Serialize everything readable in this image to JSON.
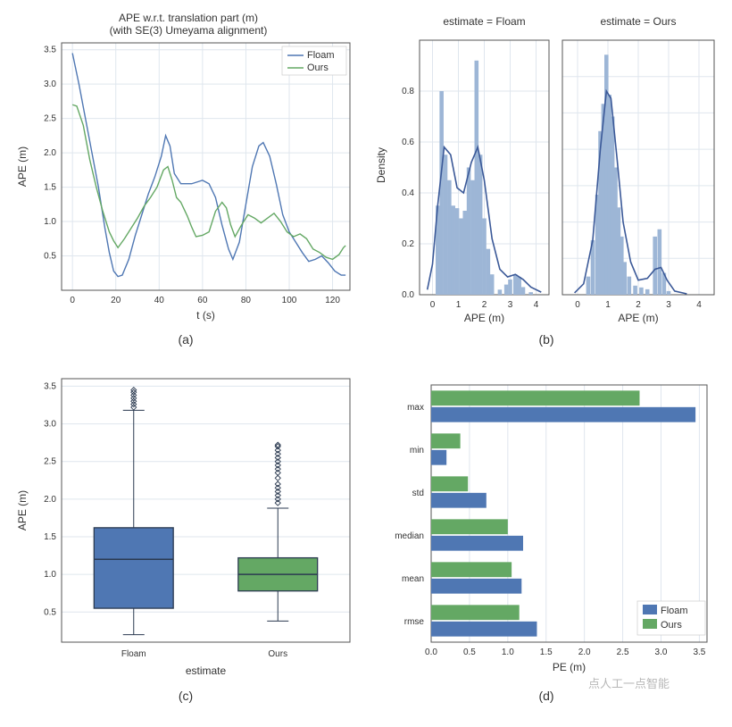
{
  "colors": {
    "floam": "#4f77b3",
    "ours": "#64a864",
    "grid": "#dfe6ee",
    "axis": "#555555",
    "text": "#333333",
    "bg": "#ffffff",
    "boxFloam": "#4f77b3",
    "boxOurs": "#64a864",
    "boxEdge": "#2b3a50",
    "histBar": "#9db6d6",
    "histLine": "#3b5998"
  },
  "font": {
    "axis_label_size": 12,
    "tick_size": 10,
    "title_size": 12,
    "legend_size": 11,
    "subcap_size": 14
  },
  "panel_a": {
    "caption": "(a)",
    "type": "line",
    "title_line1": "APE w.r.t. translation part (m)",
    "title_line2": "(with SE(3) Umeyama alignment)",
    "xlabel": "t (s)",
    "ylabel": "APE (m)",
    "xlim": [
      -5,
      128
    ],
    "ylim": [
      0,
      3.6
    ],
    "xticks": [
      0,
      20,
      40,
      60,
      80,
      100,
      120
    ],
    "yticks": [
      0.5,
      1.0,
      1.5,
      2.0,
      2.5,
      3.0,
      3.5
    ],
    "legend": [
      {
        "label": "Floam",
        "color": "floam"
      },
      {
        "label": "Ours",
        "color": "ours"
      }
    ],
    "series": {
      "floam": [
        [
          0,
          3.45
        ],
        [
          3,
          3.0
        ],
        [
          6,
          2.5
        ],
        [
          9,
          2.0
        ],
        [
          12,
          1.5
        ],
        [
          15,
          0.9
        ],
        [
          17,
          0.55
        ],
        [
          19,
          0.28
        ],
        [
          21,
          0.2
        ],
        [
          23,
          0.22
        ],
        [
          26,
          0.45
        ],
        [
          29,
          0.8
        ],
        [
          32,
          1.1
        ],
        [
          35,
          1.4
        ],
        [
          38,
          1.65
        ],
        [
          41,
          1.95
        ],
        [
          43,
          2.25
        ],
        [
          45,
          2.1
        ],
        [
          47,
          1.7
        ],
        [
          50,
          1.55
        ],
        [
          55,
          1.55
        ],
        [
          60,
          1.6
        ],
        [
          63,
          1.55
        ],
        [
          66,
          1.35
        ],
        [
          69,
          0.95
        ],
        [
          72,
          0.6
        ],
        [
          74,
          0.45
        ],
        [
          77,
          0.7
        ],
        [
          80,
          1.25
        ],
        [
          83,
          1.8
        ],
        [
          86,
          2.1
        ],
        [
          88,
          2.15
        ],
        [
          91,
          1.95
        ],
        [
          94,
          1.55
        ],
        [
          97,
          1.1
        ],
        [
          100,
          0.85
        ],
        [
          103,
          0.7
        ],
        [
          106,
          0.55
        ],
        [
          109,
          0.42
        ],
        [
          112,
          0.45
        ],
        [
          115,
          0.5
        ],
        [
          118,
          0.4
        ],
        [
          121,
          0.28
        ],
        [
          124,
          0.22
        ],
        [
          126,
          0.22
        ]
      ],
      "ours": [
        [
          0,
          2.7
        ],
        [
          2,
          2.68
        ],
        [
          5,
          2.4
        ],
        [
          8,
          1.9
        ],
        [
          11,
          1.5
        ],
        [
          14,
          1.15
        ],
        [
          17,
          0.85
        ],
        [
          19,
          0.72
        ],
        [
          21,
          0.62
        ],
        [
          24,
          0.75
        ],
        [
          27,
          0.9
        ],
        [
          30,
          1.05
        ],
        [
          33,
          1.22
        ],
        [
          36,
          1.35
        ],
        [
          39,
          1.5
        ],
        [
          42,
          1.75
        ],
        [
          44,
          1.8
        ],
        [
          46,
          1.6
        ],
        [
          48,
          1.35
        ],
        [
          50,
          1.28
        ],
        [
          53,
          1.08
        ],
        [
          55,
          0.92
        ],
        [
          57,
          0.78
        ],
        [
          60,
          0.8
        ],
        [
          63,
          0.85
        ],
        [
          66,
          1.15
        ],
        [
          69,
          1.28
        ],
        [
          71,
          1.2
        ],
        [
          73,
          0.95
        ],
        [
          75,
          0.78
        ],
        [
          78,
          0.95
        ],
        [
          81,
          1.1
        ],
        [
          84,
          1.05
        ],
        [
          87,
          0.98
        ],
        [
          90,
          1.05
        ],
        [
          93,
          1.12
        ],
        [
          96,
          1.0
        ],
        [
          99,
          0.85
        ],
        [
          102,
          0.78
        ],
        [
          105,
          0.82
        ],
        [
          108,
          0.75
        ],
        [
          111,
          0.6
        ],
        [
          114,
          0.55
        ],
        [
          117,
          0.48
        ],
        [
          120,
          0.45
        ],
        [
          123,
          0.52
        ],
        [
          125,
          0.62
        ],
        [
          126,
          0.65
        ]
      ]
    }
  },
  "panel_b": {
    "caption": "(b)",
    "xlabel": "APE (m)",
    "ylabel": "Density",
    "sub": [
      {
        "title": "estimate = Floam",
        "xlim": [
          -0.5,
          4.5
        ],
        "ylim": [
          0,
          1.0
        ],
        "xticks": [
          0,
          1,
          2,
          3,
          4
        ],
        "yticks": [
          0.0,
          0.2,
          0.4,
          0.6,
          0.8
        ],
        "bin_width": 0.175,
        "bars": [
          [
            0.2,
            0.35
          ],
          [
            0.35,
            0.8
          ],
          [
            0.5,
            0.55
          ],
          [
            0.65,
            0.45
          ],
          [
            0.8,
            0.35
          ],
          [
            0.95,
            0.34
          ],
          [
            1.1,
            0.3
          ],
          [
            1.25,
            0.33
          ],
          [
            1.4,
            0.5
          ],
          [
            1.55,
            0.45
          ],
          [
            1.7,
            0.92
          ],
          [
            1.85,
            0.55
          ],
          [
            2.0,
            0.3
          ],
          [
            2.15,
            0.18
          ],
          [
            2.3,
            0.08
          ],
          [
            2.6,
            0.02
          ],
          [
            2.85,
            0.04
          ],
          [
            3.0,
            0.06
          ],
          [
            3.2,
            0.08
          ],
          [
            3.35,
            0.07
          ],
          [
            3.5,
            0.03
          ],
          [
            3.8,
            0.01
          ]
        ],
        "kde": [
          [
            -0.2,
            0.02
          ],
          [
            0.0,
            0.12
          ],
          [
            0.2,
            0.35
          ],
          [
            0.45,
            0.58
          ],
          [
            0.7,
            0.55
          ],
          [
            0.95,
            0.42
          ],
          [
            1.2,
            0.4
          ],
          [
            1.5,
            0.52
          ],
          [
            1.75,
            0.58
          ],
          [
            2.0,
            0.45
          ],
          [
            2.3,
            0.22
          ],
          [
            2.6,
            0.1
          ],
          [
            2.9,
            0.07
          ],
          [
            3.2,
            0.08
          ],
          [
            3.5,
            0.06
          ],
          [
            3.8,
            0.03
          ],
          [
            4.2,
            0.01
          ]
        ]
      },
      {
        "title": "estimate = Ours",
        "xlim": [
          -0.5,
          4.5
        ],
        "ylim": [
          0,
          1.4
        ],
        "xticks": [
          0,
          1,
          2,
          3,
          4
        ],
        "yticks": [
          0.0,
          0.2,
          0.4,
          0.6,
          0.8,
          1.0,
          1.2
        ],
        "bin_width": 0.15,
        "bars": [
          [
            0.35,
            0.1
          ],
          [
            0.5,
            0.3
          ],
          [
            0.65,
            0.55
          ],
          [
            0.75,
            0.9
          ],
          [
            0.85,
            1.05
          ],
          [
            0.95,
            1.32
          ],
          [
            1.05,
            1.1
          ],
          [
            1.15,
            0.98
          ],
          [
            1.25,
            0.7
          ],
          [
            1.35,
            0.48
          ],
          [
            1.45,
            0.32
          ],
          [
            1.55,
            0.18
          ],
          [
            1.7,
            0.1
          ],
          [
            1.9,
            0.05
          ],
          [
            2.1,
            0.04
          ],
          [
            2.3,
            0.03
          ],
          [
            2.55,
            0.32
          ],
          [
            2.7,
            0.36
          ],
          [
            2.85,
            0.12
          ],
          [
            3.0,
            0.02
          ]
        ],
        "kde": [
          [
            -0.1,
            0.01
          ],
          [
            0.2,
            0.06
          ],
          [
            0.5,
            0.3
          ],
          [
            0.75,
            0.8
          ],
          [
            0.95,
            1.12
          ],
          [
            1.1,
            1.08
          ],
          [
            1.3,
            0.75
          ],
          [
            1.5,
            0.4
          ],
          [
            1.75,
            0.18
          ],
          [
            2.0,
            0.08
          ],
          [
            2.3,
            0.09
          ],
          [
            2.55,
            0.14
          ],
          [
            2.75,
            0.15
          ],
          [
            2.95,
            0.08
          ],
          [
            3.2,
            0.02
          ],
          [
            3.6,
            0.005
          ]
        ]
      }
    ]
  },
  "panel_c": {
    "caption": "(c)",
    "type": "boxplot",
    "xlabel": "estimate",
    "ylabel": "APE (m)",
    "ylim": [
      0.1,
      3.6
    ],
    "yticks": [
      0.5,
      1.0,
      1.5,
      2.0,
      2.5,
      3.0,
      3.5
    ],
    "categories": [
      "Floam",
      "Ours"
    ],
    "box_width": 0.55,
    "boxes": [
      {
        "cat": "Floam",
        "q1": 0.55,
        "med": 1.2,
        "q3": 1.62,
        "wlo": 0.2,
        "whi": 3.18,
        "color": "boxFloam",
        "outliers": [
          3.22,
          3.26,
          3.3,
          3.34,
          3.38,
          3.42,
          3.45
        ]
      },
      {
        "cat": "Ours",
        "q1": 0.78,
        "med": 1.0,
        "q3": 1.22,
        "wlo": 0.38,
        "whi": 1.88,
        "color": "boxOurs",
        "outliers": [
          1.95,
          2.0,
          2.05,
          2.1,
          2.15,
          2.2,
          2.28,
          2.35,
          2.4,
          2.45,
          2.5,
          2.55,
          2.6,
          2.65,
          2.7,
          2.72
        ]
      }
    ]
  },
  "panel_d": {
    "caption": "(d)",
    "type": "grouped-hbar",
    "xlim": [
      0,
      3.6
    ],
    "xticks": [
      0.0,
      0.5,
      1.0,
      1.5,
      2.0,
      2.5,
      3.0,
      3.5
    ],
    "xlabel": "PE (m)",
    "metrics": [
      "max",
      "min",
      "std",
      "median",
      "mean",
      "rmse"
    ],
    "bar_h": 0.35,
    "series": [
      {
        "name": "Ours",
        "color": "ours",
        "values": {
          "max": 2.72,
          "min": 0.38,
          "std": 0.48,
          "median": 1.0,
          "mean": 1.05,
          "rmse": 1.15
        }
      },
      {
        "name": "Floam",
        "color": "floam",
        "values": {
          "max": 3.45,
          "min": 0.2,
          "std": 0.72,
          "median": 1.2,
          "mean": 1.18,
          "rmse": 1.38
        }
      }
    ],
    "legend": [
      {
        "label": "Floam",
        "color": "floam"
      },
      {
        "label": "Ours",
        "color": "ours"
      }
    ]
  },
  "watermark": "点人工一点智能"
}
